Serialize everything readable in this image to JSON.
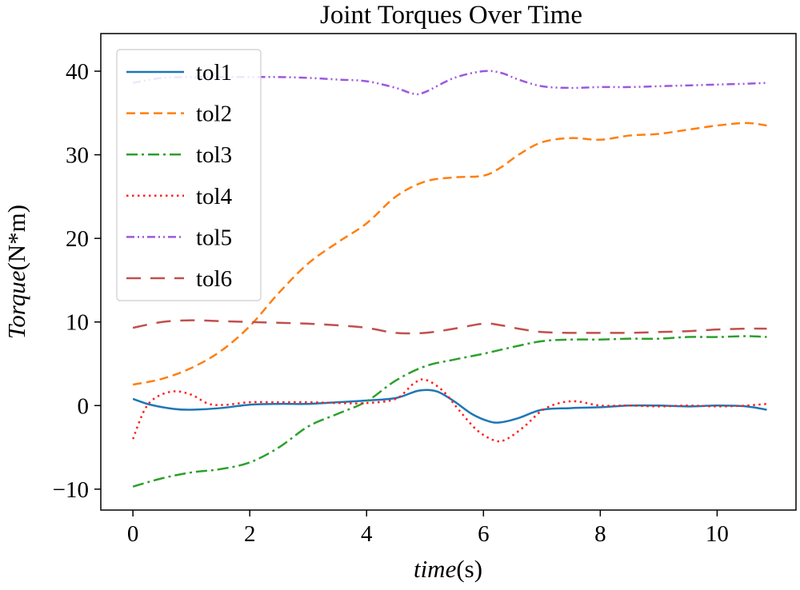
{
  "chart_data": {
    "type": "line",
    "title": "Joint Torques Over Time",
    "xlabel_italic": "time",
    "xlabel_unit": "(s)",
    "ylabel_italic": "Torque",
    "ylabel_unit": "(N*m)",
    "xlim": [
      -0.55,
      11.35
    ],
    "ylim": [
      -12.5,
      44.5
    ],
    "xticks": [
      0,
      2,
      4,
      6,
      8,
      10
    ],
    "yticks": [
      -10,
      0,
      10,
      20,
      30,
      40
    ],
    "ytick_labels": [
      "−10",
      "0",
      "10",
      "20",
      "30",
      "40"
    ],
    "grid": false,
    "legend_position": "top-left",
    "series": [
      {
        "name": "tol1",
        "color": "#1f77b4",
        "dash": "solid",
        "x": [
          0,
          0.3,
          0.7,
          1,
          1.5,
          2,
          2.5,
          3,
          3.5,
          4,
          4.5,
          4.9,
          5.2,
          5.5,
          5.8,
          6.1,
          6.3,
          6.6,
          7,
          7.5,
          8,
          8.5,
          9,
          9.5,
          10,
          10.5,
          10.85
        ],
        "y": [
          0.8,
          0.1,
          -0.4,
          -0.5,
          -0.3,
          0.1,
          0.2,
          0.2,
          0.4,
          0.6,
          0.9,
          1.8,
          1.7,
          0.5,
          -1.0,
          -1.9,
          -2.0,
          -1.5,
          -0.5,
          -0.3,
          -0.2,
          0,
          0,
          -0.1,
          0,
          -0.1,
          -0.5
        ]
      },
      {
        "name": "tol2",
        "color": "#ff7f0e",
        "dash": "dashed",
        "x": [
          0,
          0.5,
          1,
          1.5,
          2,
          2.5,
          3,
          3.5,
          4,
          4.5,
          5,
          5.5,
          6,
          6.3,
          6.6,
          7,
          7.5,
          8,
          8.5,
          9,
          9.5,
          10,
          10.5,
          10.85
        ],
        "y": [
          2.5,
          3.2,
          4.5,
          6.5,
          9.5,
          13.5,
          17.0,
          19.5,
          21.8,
          25.0,
          26.8,
          27.3,
          27.5,
          28.5,
          30.0,
          31.5,
          32.0,
          31.8,
          32.3,
          32.5,
          33.0,
          33.5,
          33.8,
          33.5
        ]
      },
      {
        "name": "tol3",
        "color": "#2ca02c",
        "dash": "dashdot",
        "x": [
          0,
          0.5,
          1,
          1.5,
          2,
          2.5,
          3,
          3.5,
          4,
          4.5,
          5,
          5.5,
          6,
          6.5,
          7,
          7.5,
          8,
          8.5,
          9,
          9.5,
          10,
          10.5,
          10.85
        ],
        "y": [
          -9.7,
          -8.7,
          -8.0,
          -7.6,
          -6.8,
          -5.0,
          -2.5,
          -1.0,
          0.5,
          3.0,
          4.7,
          5.5,
          6.2,
          7.0,
          7.7,
          7.9,
          7.9,
          8.0,
          8.0,
          8.2,
          8.2,
          8.3,
          8.2
        ]
      },
      {
        "name": "tol4",
        "color": "#ff2020",
        "dash": "dotted",
        "x": [
          0,
          0.2,
          0.4,
          0.7,
          1,
          1.3,
          1.6,
          2,
          2.5,
          3,
          3.5,
          4,
          4.5,
          4.8,
          5,
          5.3,
          5.6,
          5.9,
          6.2,
          6.4,
          6.7,
          7,
          7.3,
          7.6,
          8,
          8.5,
          9,
          9.5,
          10,
          10.5,
          10.85
        ],
        "y": [
          -4.0,
          -0.5,
          1.0,
          1.7,
          1.3,
          0.2,
          0.1,
          0.4,
          0.4,
          0.4,
          0.3,
          0.3,
          0.8,
          2.6,
          3.1,
          1.8,
          -0.7,
          -3.0,
          -4.2,
          -4.0,
          -2.5,
          -0.6,
          0.3,
          0.5,
          0,
          0,
          -0.1,
          0,
          -0.1,
          0,
          0.2
        ]
      },
      {
        "name": "tol5",
        "color": "#9c58e0",
        "dash": "dashdotdot",
        "x": [
          0,
          0.5,
          1,
          1.5,
          2,
          2.5,
          3,
          3.5,
          4,
          4.5,
          4.8,
          5,
          5.5,
          6,
          6.3,
          6.6,
          7,
          7.5,
          8,
          8.5,
          9,
          9.5,
          10,
          10.5,
          10.85
        ],
        "y": [
          38.6,
          39.2,
          39.3,
          39.3,
          39.3,
          39.3,
          39.2,
          39.0,
          38.8,
          38.0,
          37.3,
          37.5,
          39.2,
          40.0,
          39.8,
          39.0,
          38.2,
          38.0,
          38.1,
          38.1,
          38.2,
          38.3,
          38.4,
          38.5,
          38.6
        ]
      },
      {
        "name": "tol6",
        "color": "#c0504d",
        "dash": "longdash",
        "x": [
          0,
          0.5,
          1,
          1.5,
          2,
          2.5,
          3,
          3.5,
          4,
          4.5,
          5,
          5.5,
          6,
          6.3,
          6.6,
          7,
          7.5,
          8,
          8.5,
          9,
          9.5,
          10,
          10.5,
          10.85
        ],
        "y": [
          9.3,
          10.0,
          10.2,
          10.1,
          10.0,
          9.9,
          9.8,
          9.6,
          9.3,
          8.7,
          8.7,
          9.2,
          9.8,
          9.6,
          9.2,
          8.8,
          8.7,
          8.7,
          8.7,
          8.8,
          8.9,
          9.1,
          9.2,
          9.2
        ]
      }
    ]
  }
}
